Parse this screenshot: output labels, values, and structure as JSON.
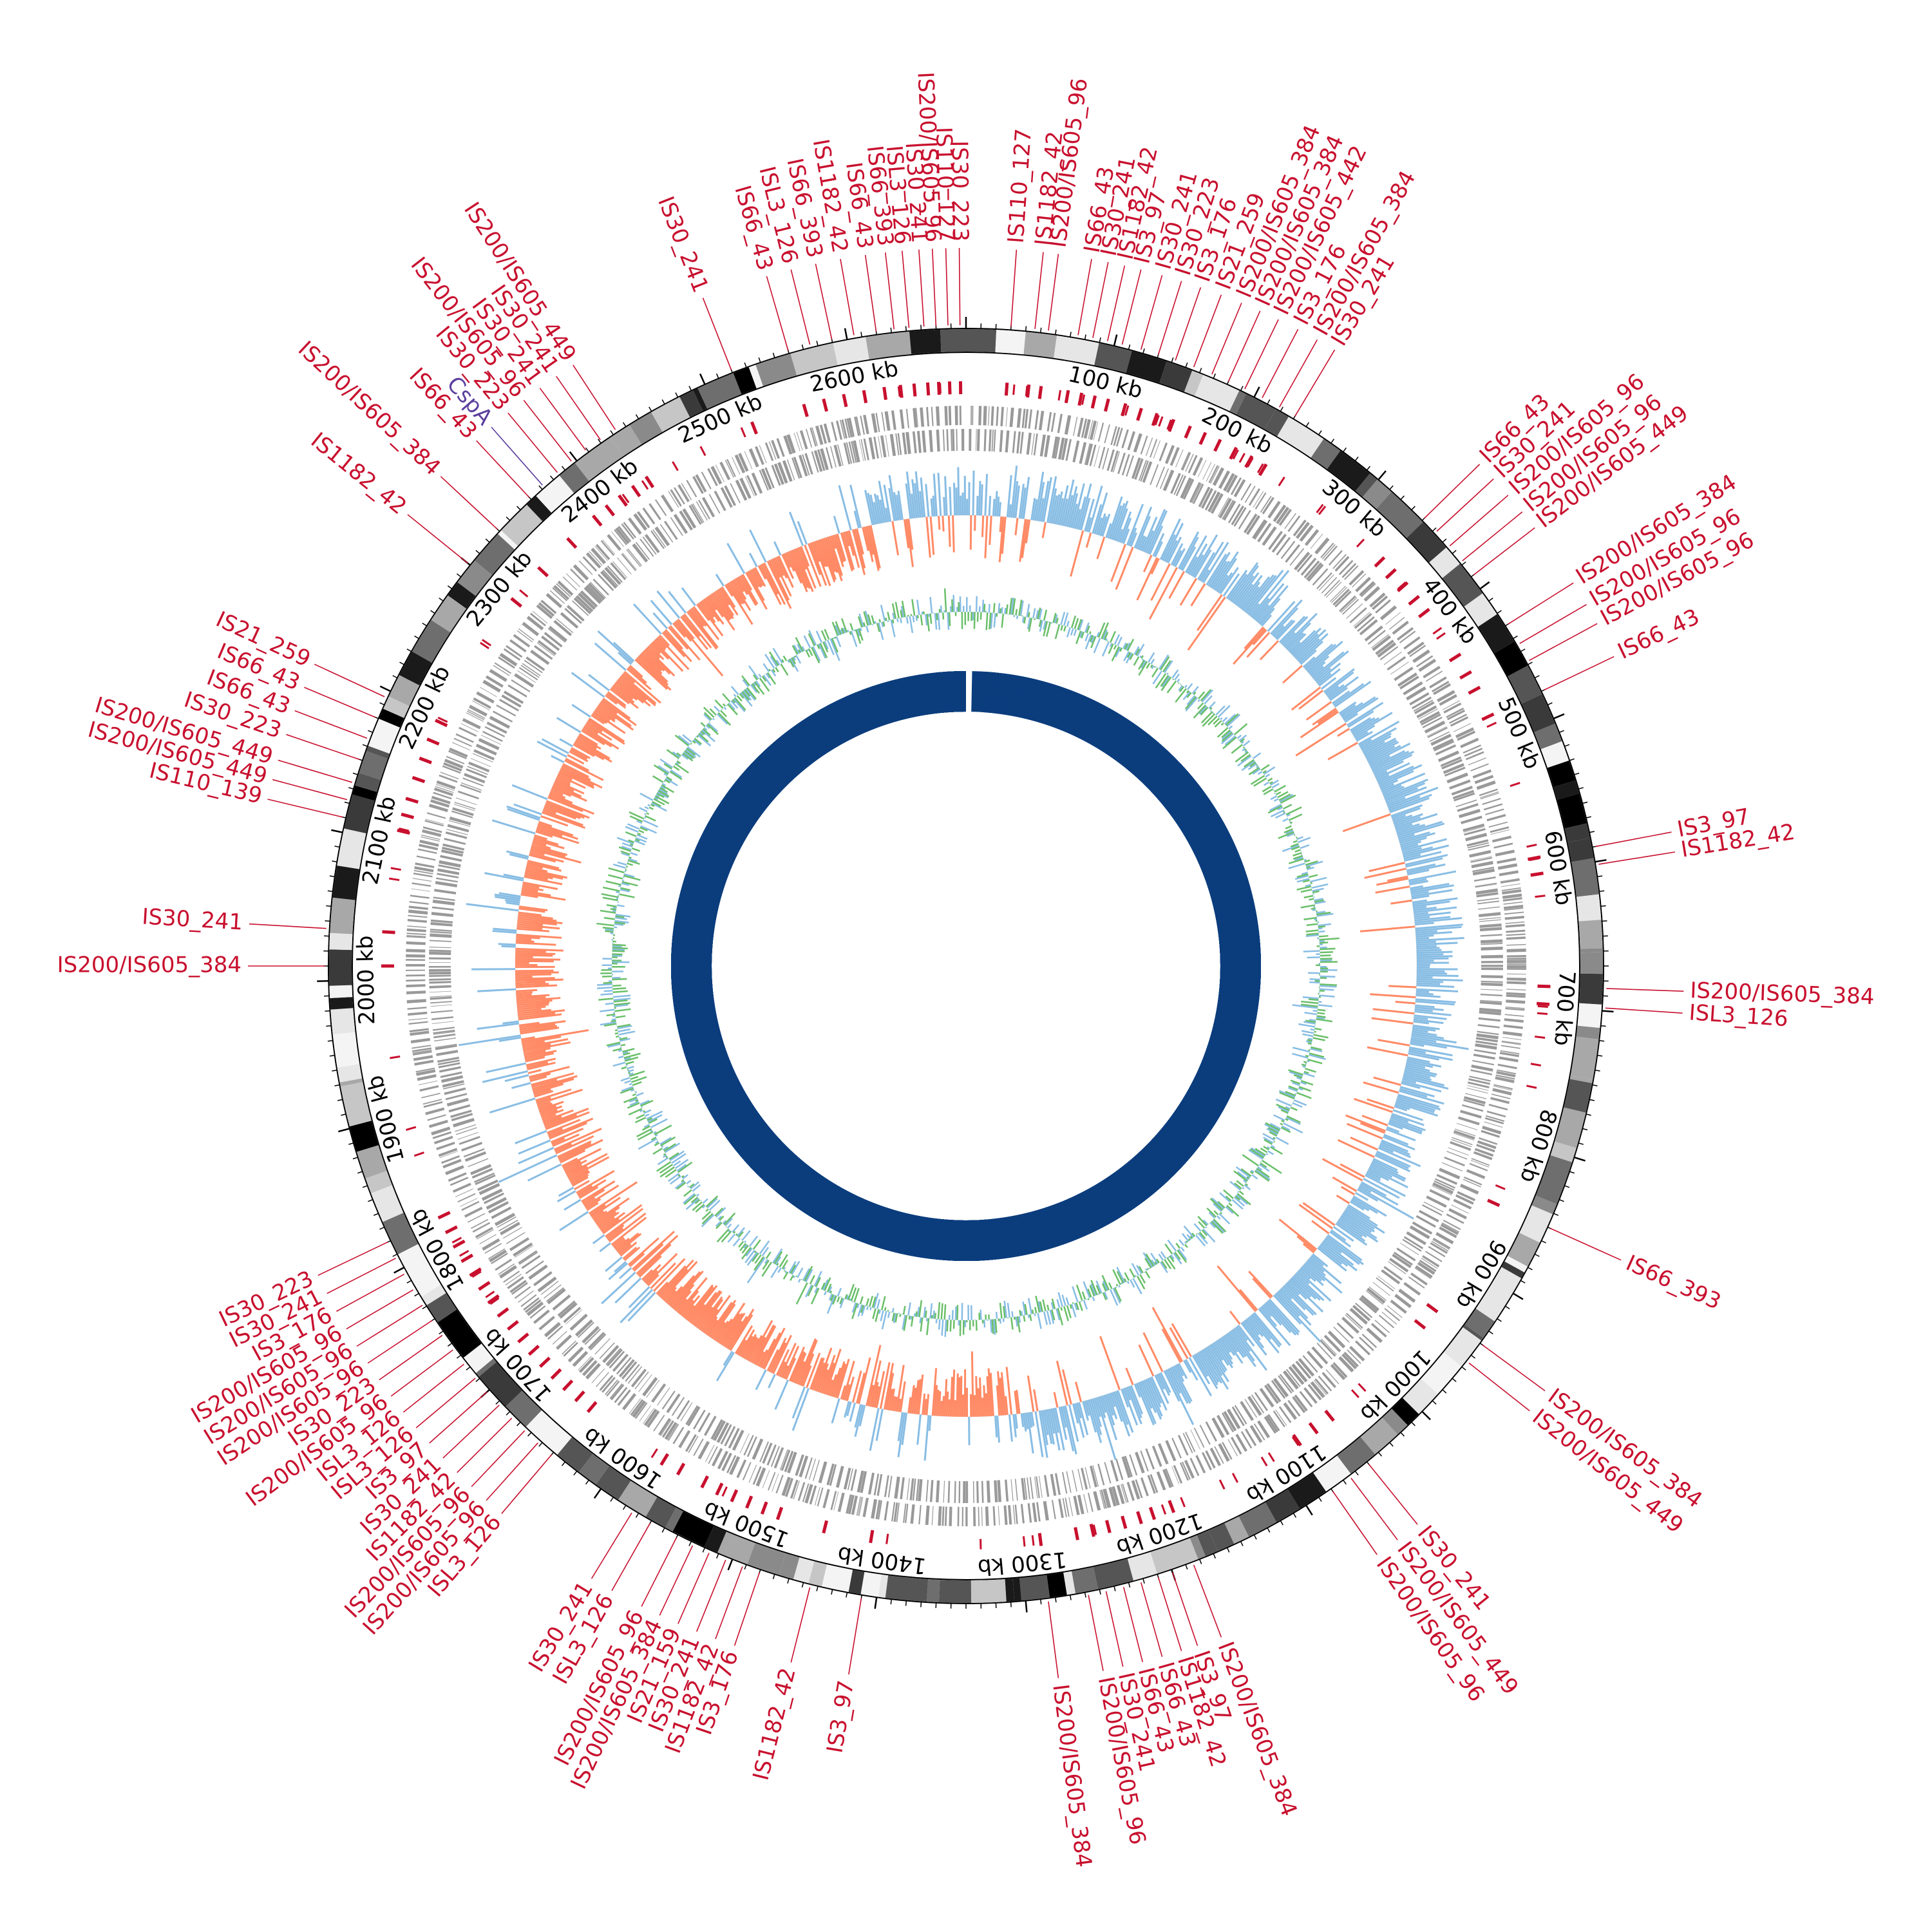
{
  "genome": {
    "length_kb": 2680,
    "tick_labels_kb": [
      100,
      200,
      300,
      400,
      500,
      600,
      700,
      800,
      900,
      1000,
      1100,
      1200,
      1300,
      1400,
      1500,
      1600,
      1700,
      1800,
      1900,
      2000,
      2100,
      2200,
      2300,
      2400,
      2500,
      2600
    ],
    "tick_suffix": "kb"
  },
  "colors": {
    "is_element": "#c8102e",
    "gene_highlight": "#5b3f9e",
    "cds_track": "#999999",
    "skew_positive": "#88bde4",
    "skew_negative": "#ff8a65",
    "gc_content": "#6abf69",
    "homology_track": "#0b3d7d"
  },
  "annotations": [
    {
      "label": "IS110_127",
      "kb": 30
    },
    {
      "label": "IS1182_42",
      "kb": 46
    },
    {
      "label": "IS200/IS605_96",
      "kb": 55
    },
    {
      "label": "IS66_43",
      "kb": 75
    },
    {
      "label": "IS30_241",
      "kb": 85
    },
    {
      "label": "IS1182_42",
      "kb": 95
    },
    {
      "label": "IS3_97",
      "kb": 105
    },
    {
      "label": "IS30_241",
      "kb": 118
    },
    {
      "label": "IS30_223",
      "kb": 130
    },
    {
      "label": "IS3_176",
      "kb": 142
    },
    {
      "label": "IS21_259",
      "kb": 155
    },
    {
      "label": "IS200/IS605_384",
      "kb": 168
    },
    {
      "label": "IS200/IS605_384",
      "kb": 180
    },
    {
      "label": "IS200/IS605_442",
      "kb": 192
    },
    {
      "label": "IS3_176",
      "kb": 205
    },
    {
      "label": "IS200/IS605_384",
      "kb": 218
    },
    {
      "label": "IS30_241",
      "kb": 230
    },
    {
      "label": "IS66_43",
      "kb": 340
    },
    {
      "label": "IS30_241",
      "kb": 352
    },
    {
      "label": "IS200/IS605_96",
      "kb": 365
    },
    {
      "label": "IS200/IS605_96",
      "kb": 378
    },
    {
      "label": "IS200/IS605_449",
      "kb": 390
    },
    {
      "label": "IS200/IS605_384",
      "kb": 430
    },
    {
      "label": "IS200/IS605_96",
      "kb": 445
    },
    {
      "label": "IS200/IS605_96",
      "kb": 458
    },
    {
      "label": "IS66_43",
      "kb": 480
    },
    {
      "label": "IS3_97",
      "kb": 590
    },
    {
      "label": "IS1182_42",
      "kb": 602
    },
    {
      "label": "IS200/IS605_384",
      "kb": 685
    },
    {
      "label": "ISL3_126",
      "kb": 698
    },
    {
      "label": "IS66_393",
      "kb": 850
    },
    {
      "label": "IS200/IS605_384",
      "kb": 940
    },
    {
      "label": "IS200/IS605_449",
      "kb": 955
    },
    {
      "label": "IS30_241",
      "kb": 1050
    },
    {
      "label": "IS200/IS605_449",
      "kb": 1065
    },
    {
      "label": "IS200/IS605_96",
      "kb": 1080
    },
    {
      "label": "IS200/IS605_384",
      "kb": 1185
    },
    {
      "label": "IS3_97",
      "kb": 1200
    },
    {
      "label": "IS1182_42",
      "kb": 1210
    },
    {
      "label": "IS66_43",
      "kb": 1222
    },
    {
      "label": "IS66_43",
      "kb": 1234
    },
    {
      "label": "IS30_241",
      "kb": 1246
    },
    {
      "label": "IS200/IS605_96",
      "kb": 1258
    },
    {
      "label": "IS200/IS605_384",
      "kb": 1285
    },
    {
      "label": "IS3_97",
      "kb": 1410
    },
    {
      "label": "IS1182_42",
      "kb": 1445
    },
    {
      "label": "IS3_176",
      "kb": 1480
    },
    {
      "label": "IS1182_42",
      "kb": 1492
    },
    {
      "label": "IS30_241",
      "kb": 1504
    },
    {
      "label": "IS21_159",
      "kb": 1516
    },
    {
      "label": "IS200/IS605_384",
      "kb": 1528
    },
    {
      "label": "IS200/IS605_96",
      "kb": 1540
    },
    {
      "label": "ISL3_126",
      "kb": 1560
    },
    {
      "label": "IS30_241",
      "kb": 1574
    },
    {
      "label": "ISL3_126",
      "kb": 1640
    },
    {
      "label": "IS200/IS605_96",
      "kb": 1652
    },
    {
      "label": "IS200/IS605_96",
      "kb": 1664
    },
    {
      "label": "IS1182_42",
      "kb": 1676
    },
    {
      "label": "IS30_241",
      "kb": 1688
    },
    {
      "label": "IS3_97",
      "kb": 1700
    },
    {
      "label": "ISL3_126",
      "kb": 1712
    },
    {
      "label": "ISL3_126",
      "kb": 1724
    },
    {
      "label": "IS200/IS605_96",
      "kb": 1736
    },
    {
      "label": "IS30_223",
      "kb": 1748
    },
    {
      "label": "IS200/IS605_96",
      "kb": 1760
    },
    {
      "label": "IS200/IS605_96",
      "kb": 1772
    },
    {
      "label": "IS200/IS605_96",
      "kb": 1784
    },
    {
      "label": "IS3_176",
      "kb": 1796
    },
    {
      "label": "IS30_241",
      "kb": 1808
    },
    {
      "label": "IS30_223",
      "kb": 1820
    },
    {
      "label": "IS200/IS605_384",
      "kb": 2010
    },
    {
      "label": "IS30_241",
      "kb": 2035
    },
    {
      "label": "IS110_139",
      "kb": 2110
    },
    {
      "label": "IS200/IS605_449",
      "kb": 2122
    },
    {
      "label": "IS200/IS605_449",
      "kb": 2134
    },
    {
      "label": "IS30_223",
      "kb": 2150
    },
    {
      "label": "IS66_43",
      "kb": 2165
    },
    {
      "label": "IS66_43",
      "kb": 2180
    },
    {
      "label": "IS21_259",
      "kb": 2195
    },
    {
      "label": "IS1182_42",
      "kb": 2300
    },
    {
      "label": "IS200/IS605_384",
      "kb": 2330
    },
    {
      "label": "IS66_43",
      "kb": 2360
    },
    {
      "label": "IS30_223",
      "kb": 2385
    },
    {
      "label": "IS200/IS605_96",
      "kb": 2397
    },
    {
      "label": "IS30_241",
      "kb": 2409
    },
    {
      "label": "IS30_241",
      "kb": 2421
    },
    {
      "label": "IS200/IS605_449",
      "kb": 2433
    },
    {
      "label": "IS30_241",
      "kb": 2520
    },
    {
      "label": "IS66_43",
      "kb": 2560
    },
    {
      "label": "ISL3_126",
      "kb": 2575
    },
    {
      "label": "IS66_393",
      "kb": 2590
    },
    {
      "label": "IS1182_42",
      "kb": 2605
    },
    {
      "label": "IS66_43",
      "kb": 2620
    },
    {
      "label": "IS66_393",
      "kb": 2632
    },
    {
      "label": "ISL3_126",
      "kb": 2642
    },
    {
      "label": "IS30_241",
      "kb": 2652
    },
    {
      "label": "IS200/IS605_96",
      "kb": 2660
    },
    {
      "label": "IS110_127",
      "kb": 2668
    },
    {
      "label": "IS30_223",
      "kb": 2676
    }
  ],
  "gene_annotations": [
    {
      "label": "CspA",
      "kb": 2372
    }
  ]
}
